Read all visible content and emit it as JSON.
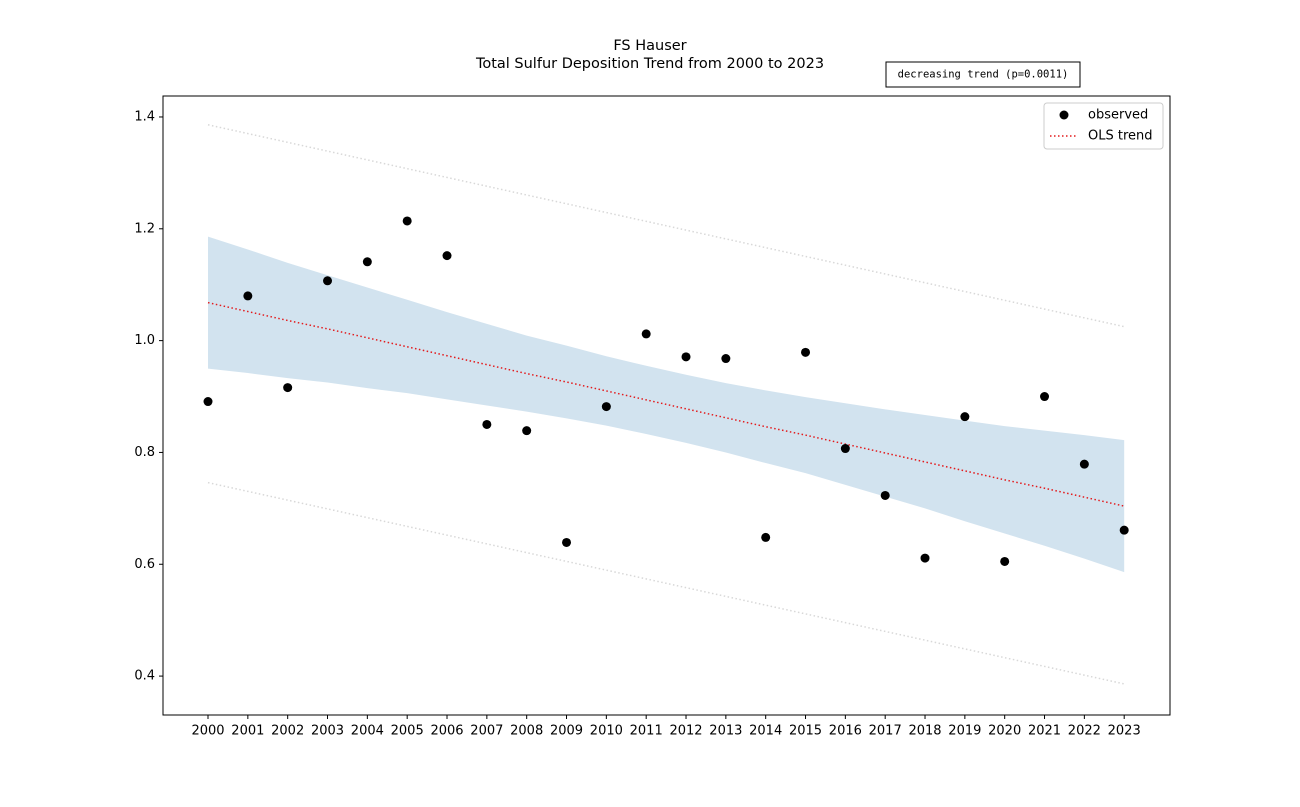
{
  "chart_data": {
    "type": "scatter",
    "title": "FS Hauser",
    "subtitle": "Total Sulfur Deposition Trend from 2000 to 2023",
    "annotation": "decreasing trend (p=0.0011)",
    "x": [
      2000,
      2001,
      2002,
      2003,
      2004,
      2005,
      2006,
      2007,
      2008,
      2009,
      2010,
      2011,
      2012,
      2013,
      2014,
      2015,
      2016,
      2017,
      2018,
      2019,
      2020,
      2021,
      2022,
      2023
    ],
    "series": [
      {
        "name": "observed",
        "color": "#000000",
        "values": [
          0.891,
          1.08,
          0.916,
          1.107,
          1.141,
          1.214,
          1.152,
          0.85,
          0.839,
          0.639,
          0.882,
          1.012,
          0.971,
          0.968,
          0.648,
          0.979,
          0.807,
          0.723,
          0.611,
          0.864,
          0.605,
          0.9,
          0.779,
          0.661
        ]
      },
      {
        "name": "OLS trend",
        "color": "#e31a1c",
        "values": [
          1.068,
          1.052,
          1.036,
          1.021,
          1.005,
          0.989,
          0.973,
          0.957,
          0.941,
          0.926,
          0.91,
          0.894,
          0.878,
          0.862,
          0.846,
          0.831,
          0.815,
          0.799,
          0.783,
          0.767,
          0.751,
          0.736,
          0.72,
          0.704
        ]
      }
    ],
    "band": {
      "color": "#d2e3ef",
      "upper": [
        1.186,
        1.163,
        1.139,
        1.117,
        1.095,
        1.073,
        1.051,
        1.03,
        1.009,
        0.991,
        0.972,
        0.955,
        0.939,
        0.924,
        0.911,
        0.899,
        0.888,
        0.877,
        0.867,
        0.857,
        0.847,
        0.839,
        0.831,
        0.822
      ],
      "lower": [
        0.95,
        0.942,
        0.933,
        0.925,
        0.915,
        0.906,
        0.895,
        0.884,
        0.873,
        0.861,
        0.848,
        0.833,
        0.817,
        0.8,
        0.781,
        0.763,
        0.742,
        0.721,
        0.7,
        0.677,
        0.655,
        0.633,
        0.61,
        0.586
      ]
    },
    "prediction_lines": {
      "color": "#d8d8d8",
      "x": [
        2000,
        2023
      ],
      "upper": [
        1.386,
        1.025
      ],
      "lower": [
        0.746,
        0.386
      ]
    },
    "xlim": [
      1998.87,
      2024.15
    ],
    "ylim": [
      0.3304,
      1.4375
    ],
    "xticks": [
      2000,
      2001,
      2002,
      2003,
      2004,
      2005,
      2006,
      2007,
      2008,
      2009,
      2010,
      2011,
      2012,
      2013,
      2014,
      2015,
      2016,
      2017,
      2018,
      2019,
      2020,
      2021,
      2022,
      2023
    ],
    "yticks": [
      0.4,
      0.6,
      0.8,
      {
        "value": 1.0,
        "label": "1.0"
      },
      1.2,
      1.4
    ],
    "legend": "upper right",
    "grid": false
  }
}
